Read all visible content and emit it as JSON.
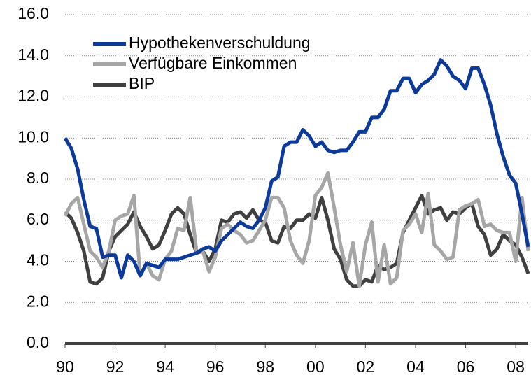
{
  "chart_data": {
    "type": "line",
    "x": [
      1990,
      1990.25,
      1990.5,
      1990.75,
      1991,
      1991.25,
      1991.5,
      1991.75,
      1992,
      1992.25,
      1992.5,
      1992.75,
      1993,
      1993.25,
      1993.5,
      1993.75,
      1994,
      1994.25,
      1994.5,
      1994.75,
      1995,
      1995.25,
      1995.5,
      1995.75,
      1996,
      1996.25,
      1996.5,
      1996.75,
      1997,
      1997.25,
      1997.5,
      1997.75,
      1998,
      1998.25,
      1998.5,
      1998.75,
      1999,
      1999.25,
      1999.5,
      1999.75,
      2000,
      2000.25,
      2000.5,
      2000.75,
      2001,
      2001.25,
      2001.5,
      2001.75,
      2002,
      2002.25,
      2002.5,
      2002.75,
      2003,
      2003.25,
      2003.5,
      2003.75,
      2004,
      2004.25,
      2004.5,
      2004.75,
      2005,
      2005.25,
      2005.5,
      2005.75,
      2006,
      2006.25,
      2006.5,
      2006.75,
      2007,
      2007.25,
      2007.5,
      2007.75,
      2008,
      2008.25,
      2008.5
    ],
    "series": [
      {
        "name": "Hypothekenverschuldung",
        "color": "#0b3a9b",
        "values": [
          10.0,
          9.5,
          8.5,
          7.0,
          5.7,
          5.6,
          4.2,
          4.3,
          4.3,
          3.2,
          4.3,
          4.0,
          3.3,
          3.9,
          3.8,
          3.7,
          4.1,
          4.1,
          4.1,
          4.2,
          4.3,
          4.4,
          4.6,
          4.7,
          4.5,
          5.0,
          5.3,
          5.6,
          5.9,
          5.7,
          5.6,
          6.0,
          6.6,
          7.9,
          8.1,
          9.6,
          9.8,
          9.8,
          10.4,
          10.1,
          9.6,
          9.8,
          9.4,
          9.3,
          9.4,
          9.4,
          9.8,
          10.3,
          10.3,
          11.0,
          11.0,
          11.4,
          12.3,
          12.3,
          12.9,
          12.9,
          12.2,
          12.6,
          12.8,
          13.1,
          13.8,
          13.5,
          13.0,
          12.8,
          12.4,
          13.4,
          13.4,
          12.6,
          11.6,
          10.2,
          9.1,
          8.2,
          7.8,
          6.3,
          4.7
        ]
      },
      {
        "name": "Verfügbare Einkommen",
        "color": "#a6a6a6",
        "values": [
          6.2,
          6.8,
          7.1,
          5.8,
          4.5,
          4.2,
          3.7,
          4.5,
          6.0,
          6.2,
          6.3,
          7.2,
          3.3,
          3.9,
          3.3,
          3.1,
          4.1,
          4.5,
          5.6,
          5.5,
          7.1,
          4.5,
          4.5,
          3.5,
          4.2,
          5.6,
          5.8,
          5.5,
          5.3,
          4.9,
          5.0,
          5.5,
          6.0,
          7.1,
          7.1,
          6.6,
          5.0,
          4.3,
          3.9,
          5.0,
          7.2,
          7.6,
          8.3,
          6.6,
          4.8,
          3.5,
          4.9,
          2.8,
          4.8,
          5.9,
          3.0,
          4.8,
          2.9,
          3.2,
          5.5,
          5.8,
          6.3,
          5.4,
          7.3,
          4.8,
          4.5,
          4.1,
          4.2,
          6.5,
          6.7,
          6.8,
          7.0,
          5.7,
          5.8,
          5.5,
          5.4,
          5.4,
          4.0,
          7.1,
          4.5
        ]
      },
      {
        "name": "BIP",
        "color": "#404040",
        "values": [
          6.4,
          6.1,
          5.4,
          4.5,
          3.0,
          2.9,
          3.2,
          4.5,
          5.2,
          5.5,
          5.8,
          6.4,
          5.7,
          5.2,
          4.6,
          4.8,
          5.5,
          6.3,
          6.6,
          6.3,
          5.3,
          4.4,
          4.5,
          4.0,
          4.6,
          6.0,
          5.9,
          6.3,
          6.4,
          6.1,
          6.5,
          6.0,
          5.9,
          5.0,
          4.9,
          5.7,
          5.6,
          6.0,
          6.0,
          6.3,
          6.1,
          7.1,
          6.0,
          4.6,
          4.1,
          3.1,
          2.8,
          2.8,
          3.1,
          3.0,
          3.8,
          3.6,
          3.7,
          3.9,
          5.4,
          6.0,
          6.6,
          7.2,
          6.3,
          6.5,
          6.6,
          6.0,
          6.4,
          6.3,
          6.6,
          6.8,
          5.7,
          5.3,
          4.3,
          4.6,
          5.3,
          5.0,
          4.8,
          4.2,
          3.4
        ]
      }
    ],
    "xlim": [
      1990,
      2008.5
    ],
    "xticks": [
      {
        "value": 1990,
        "label": "90"
      },
      {
        "value": 1992,
        "label": "92"
      },
      {
        "value": 1994,
        "label": "94"
      },
      {
        "value": 1996,
        "label": "96"
      },
      {
        "value": 1998,
        "label": "98"
      },
      {
        "value": 2000,
        "label": "00"
      },
      {
        "value": 2002,
        "label": "02"
      },
      {
        "value": 2004,
        "label": "04"
      },
      {
        "value": 2006,
        "label": "06"
      },
      {
        "value": 2008,
        "label": "08"
      }
    ],
    "ylim": [
      0,
      16
    ],
    "yticks": [
      {
        "value": 0,
        "label": "0.0"
      },
      {
        "value": 2,
        "label": "2.0"
      },
      {
        "value": 4,
        "label": "4.0"
      },
      {
        "value": 6,
        "label": "6.0"
      },
      {
        "value": 8,
        "label": "8.0"
      },
      {
        "value": 10,
        "label": "10.0"
      },
      {
        "value": 12,
        "label": "12.0"
      },
      {
        "value": 14,
        "label": "14.0"
      },
      {
        "value": 16,
        "label": "16.0"
      }
    ],
    "grid": true,
    "legend": "upper left"
  }
}
